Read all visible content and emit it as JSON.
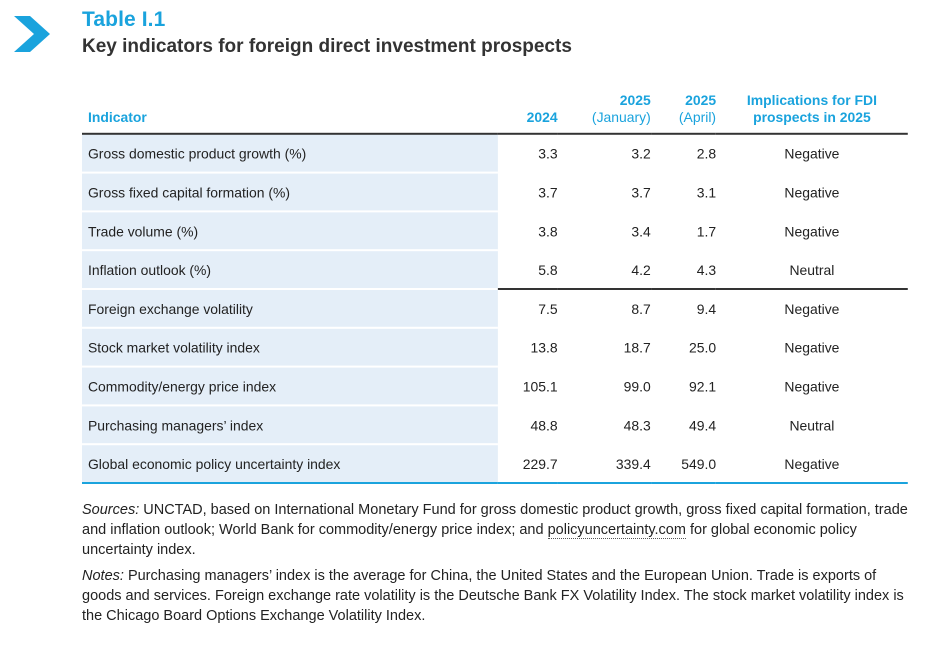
{
  "header": {
    "table_label": "Table I.1",
    "table_title": "Key indicators for foreign direct investment prospects",
    "icon": "chevron-right-icon",
    "accent_color": "#1aa3dd"
  },
  "table": {
    "columns": {
      "indicator": "Indicator",
      "y2024": "2024",
      "jan_top": "2025",
      "jan_sub": "(January)",
      "apr_top": "2025",
      "apr_sub": "(April)",
      "impl_line1": "Implications for FDI",
      "impl_line2": "prospects in 2025"
    },
    "rows": [
      {
        "indicator": "Gross domestic product growth (%)",
        "y2024": "3.3",
        "jan": "3.2",
        "apr": "2.8",
        "impl": "Negative"
      },
      {
        "indicator": "Gross fixed capital formation (%)",
        "y2024": "3.7",
        "jan": "3.7",
        "apr": "3.1",
        "impl": "Negative"
      },
      {
        "indicator": "Trade volume (%)",
        "y2024": "3.8",
        "jan": "3.4",
        "apr": "1.7",
        "impl": "Negative"
      },
      {
        "indicator": "Inflation outlook (%)",
        "y2024": "5.8",
        "jan": "4.2",
        "apr": "4.3",
        "impl": "Neutral"
      },
      {
        "indicator": "Foreign exchange volatility",
        "y2024": "7.5",
        "jan": "8.7",
        "apr": "9.4",
        "impl": "Negative"
      },
      {
        "indicator": "Stock market volatility index",
        "y2024": "13.8",
        "jan": "18.7",
        "apr": "25.0",
        "impl": "Negative"
      },
      {
        "indicator": "Commodity/energy price index",
        "y2024": "105.1",
        "jan": "99.0",
        "apr": "92.1",
        "impl": "Negative"
      },
      {
        "indicator": "Purchasing managers’ index",
        "y2024": "48.8",
        "jan": "48.3",
        "apr": "49.4",
        "impl": "Neutral"
      },
      {
        "indicator": "Global economic policy uncertainty index",
        "y2024": "229.7",
        "jan": "339.4",
        "apr": "549.0",
        "impl": "Negative"
      }
    ]
  },
  "notes": {
    "sources_label": "Sources:",
    "sources_text_1": " UNCTAD, based on International Monetary Fund for gross domestic product growth, gross fixed capital formation, trade and inflation outlook; World Bank for commodity/energy price index; and ",
    "sources_link": "policyuncertainty.com",
    "sources_text_2": " for global economic policy uncertainty index.",
    "notes_label": "Notes:",
    "notes_text": " Purchasing managers’ index is the average for China, the United States and the European Union. Trade is exports of goods and services. Foreign exchange rate volatility is the Deutsche Bank FX Volatility Index. The stock market volatility index is the Chicago Board Options Exchange Volatility Index."
  }
}
